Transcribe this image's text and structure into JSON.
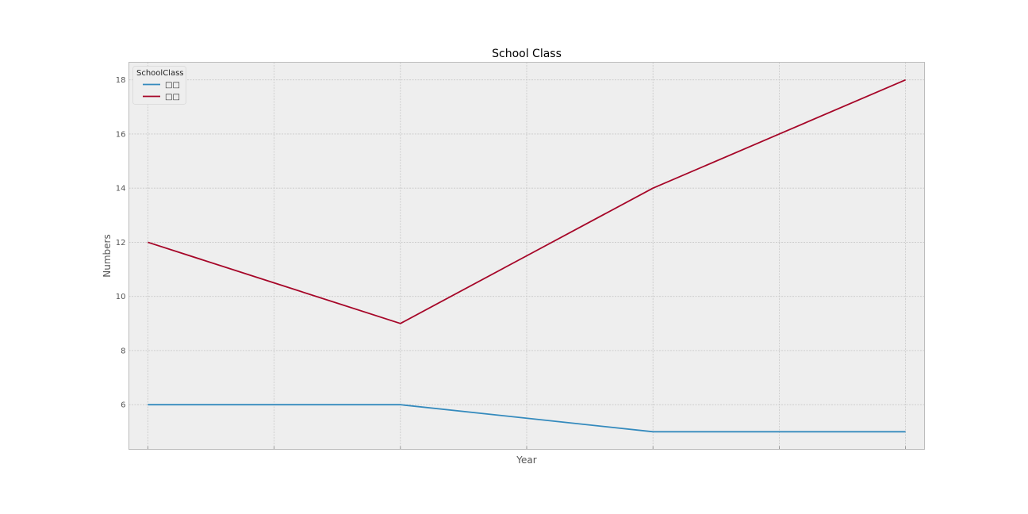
{
  "chart_data": {
    "type": "line",
    "title": "School Class",
    "xlabel": "Year",
    "ylabel": "Numbers",
    "x": [
      0,
      1,
      2,
      3,
      4,
      5,
      6
    ],
    "xlim": [
      -0.15,
      6.15
    ],
    "ylim": [
      4.35,
      18.65
    ],
    "yticks": [
      6,
      8,
      10,
      12,
      14,
      16,
      18
    ],
    "grid": true,
    "legend": {
      "title": "SchoolClass",
      "placement": "top-left"
    },
    "series": [
      {
        "name": "□□",
        "color": "#348ABD",
        "values": [
          6,
          6,
          6,
          5.5,
          5,
          5,
          5
        ]
      },
      {
        "name": "□□",
        "color": "#A60628",
        "values": [
          12,
          10.5,
          9,
          11.5,
          14,
          16,
          18
        ]
      }
    ]
  },
  "colors": {
    "plot_background": "#EEEEEE",
    "grid": "#C8C8C8",
    "frame": "#BCBCBC"
  }
}
